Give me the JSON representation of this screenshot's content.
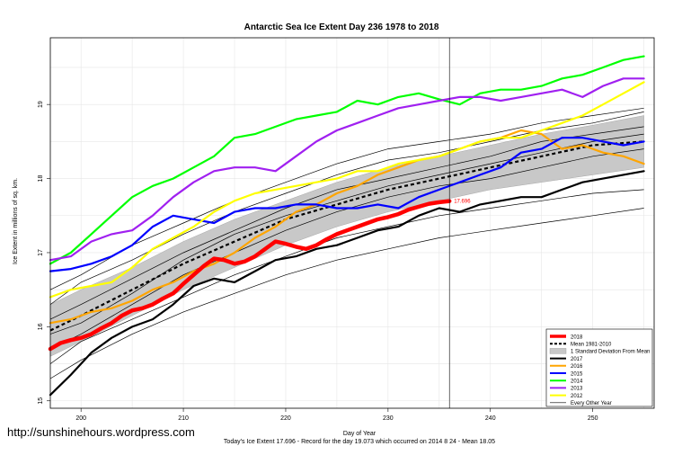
{
  "watermark": "http://sunshinehours.wordpress.com",
  "chart_data": {
    "type": "line",
    "title": "Antarctic Sea Ice Extent Day 236 1978 to 2018",
    "xlabel": "Day of Year",
    "ylabel": "Ice Extent in millions of sq. km.",
    "footer": "Today's Ice Extent  17.696  - Record for the day  19.073 which occurred on 2014 8 24  - Mean  18.05",
    "xlim": [
      197,
      256
    ],
    "ylim": [
      14.9,
      19.9
    ],
    "xticks": [
      200,
      210,
      220,
      230,
      240,
      250
    ],
    "yticks": [
      15,
      16,
      17,
      18,
      19
    ],
    "grid": true,
    "legend_position": "bottom-right",
    "current_day": 236,
    "current_value_label": "17.696",
    "colors": {
      "2018": "#ff0000",
      "mean": "#000000",
      "band": "#c8c8c8",
      "2017": "#000000",
      "2016": "#ffa500",
      "2015": "#0000ff",
      "2014": "#00ff00",
      "2013": "#a020f0",
      "2012": "#ffff00",
      "other": "#000000"
    },
    "legend": [
      "2018",
      "Mean 1981-2010",
      "1 Standard Deviation From Mean",
      "2017",
      "2016",
      "2015",
      "2014",
      "2013",
      "2012",
      "Every Other Year"
    ],
    "band": {
      "x": [
        197,
        200,
        205,
        210,
        215,
        220,
        225,
        230,
        235,
        240,
        245,
        250,
        255
      ],
      "lower": [
        15.6,
        15.8,
        16.15,
        16.5,
        16.8,
        17.1,
        17.35,
        17.55,
        17.7,
        17.85,
        17.95,
        18.05,
        18.15
      ],
      "upper": [
        16.3,
        16.5,
        16.8,
        17.15,
        17.45,
        17.7,
        17.95,
        18.15,
        18.3,
        18.45,
        18.6,
        18.72,
        18.85
      ]
    },
    "mean": {
      "x": [
        197,
        200,
        205,
        210,
        215,
        220,
        225,
        230,
        235,
        240,
        245,
        250,
        255
      ],
      "y": [
        15.95,
        16.15,
        16.5,
        16.85,
        17.15,
        17.45,
        17.65,
        17.85,
        18.0,
        18.15,
        18.3,
        18.45,
        18.5
      ]
    },
    "series": [
      {
        "name": "Every Other Year",
        "role": "other",
        "x": [
          197,
          200,
          205,
          210,
          215,
          220,
          225,
          230,
          235,
          240,
          245,
          250,
          255
        ],
        "y": [
          15.5,
          15.8,
          16.1,
          16.4,
          16.7,
          16.95,
          17.2,
          17.35,
          17.5,
          17.6,
          17.7,
          17.8,
          17.85
        ]
      },
      {
        "name": "Every Other Year",
        "role": "other",
        "x": [
          197,
          200,
          205,
          210,
          215,
          220,
          225,
          230,
          235,
          240,
          245,
          250,
          255
        ],
        "y": [
          15.7,
          15.9,
          16.3,
          16.7,
          17.0,
          17.3,
          17.55,
          17.75,
          17.9,
          18.0,
          18.15,
          18.3,
          18.4
        ]
      },
      {
        "name": "Every Other Year",
        "role": "other",
        "x": [
          197,
          200,
          205,
          210,
          215,
          220,
          225,
          230,
          235,
          240,
          245,
          250,
          255
        ],
        "y": [
          16.1,
          16.3,
          16.65,
          17.0,
          17.3,
          17.6,
          17.85,
          18.0,
          18.15,
          18.3,
          18.5,
          18.6,
          18.7
        ]
      },
      {
        "name": "Every Other Year",
        "role": "other",
        "x": [
          197,
          200,
          205,
          210,
          215,
          220,
          225,
          230,
          235,
          240,
          245,
          250,
          255
        ],
        "y": [
          16.3,
          16.6,
          16.9,
          17.25,
          17.55,
          17.8,
          18.05,
          18.25,
          18.35,
          18.5,
          18.65,
          18.75,
          18.9
        ]
      },
      {
        "name": "Every Other Year",
        "role": "other",
        "x": [
          197,
          200,
          205,
          210,
          215,
          220,
          225,
          230,
          235,
          240,
          245,
          250,
          255
        ],
        "y": [
          15.3,
          15.55,
          15.9,
          16.2,
          16.45,
          16.7,
          16.9,
          17.05,
          17.2,
          17.3,
          17.4,
          17.5,
          17.6
        ]
      },
      {
        "name": "Every Other Year",
        "role": "other",
        "x": [
          197,
          200,
          205,
          210,
          215,
          220,
          225,
          230,
          235,
          240,
          245,
          250,
          255
        ],
        "y": [
          15.9,
          16.05,
          16.45,
          16.9,
          17.25,
          17.5,
          17.7,
          17.9,
          18.05,
          18.2,
          18.35,
          18.5,
          18.6
        ]
      },
      {
        "name": "Every Other Year",
        "role": "other",
        "x": [
          197,
          200,
          205,
          210,
          215,
          220,
          225,
          230,
          235,
          240,
          245,
          250,
          255
        ],
        "y": [
          16.5,
          16.7,
          17.1,
          17.4,
          17.7,
          17.95,
          18.2,
          18.4,
          18.5,
          18.6,
          18.75,
          18.85,
          18.95
        ]
      },
      {
        "name": "2017",
        "role": "2017",
        "x": [
          197,
          199,
          201,
          203,
          205,
          207,
          209,
          211,
          213,
          215,
          217,
          219,
          221,
          223,
          225,
          227,
          229,
          231,
          233,
          235,
          237,
          239,
          241,
          243,
          245,
          247,
          249,
          251,
          253,
          255
        ],
        "y": [
          15.08,
          15.35,
          15.65,
          15.85,
          16.0,
          16.1,
          16.3,
          16.55,
          16.65,
          16.6,
          16.75,
          16.9,
          16.95,
          17.05,
          17.1,
          17.2,
          17.3,
          17.35,
          17.5,
          17.6,
          17.55,
          17.65,
          17.7,
          17.75,
          17.75,
          17.85,
          17.95,
          18.0,
          18.05,
          18.1
        ]
      },
      {
        "name": "2016",
        "role": "2016",
        "x": [
          197,
          199,
          201,
          203,
          205,
          207,
          209,
          211,
          213,
          215,
          217,
          219,
          221,
          223,
          225,
          227,
          229,
          231,
          233,
          235,
          237,
          239,
          241,
          243,
          245,
          247,
          249,
          251,
          253,
          255
        ],
        "y": [
          16.05,
          16.1,
          16.2,
          16.25,
          16.35,
          16.5,
          16.6,
          16.75,
          16.85,
          17.0,
          17.2,
          17.35,
          17.55,
          17.65,
          17.8,
          17.9,
          18.05,
          18.15,
          18.25,
          18.3,
          18.4,
          18.5,
          18.55,
          18.65,
          18.6,
          18.4,
          18.45,
          18.35,
          18.3,
          18.2
        ]
      },
      {
        "name": "2015",
        "role": "2015",
        "x": [
          197,
          199,
          201,
          203,
          205,
          207,
          209,
          211,
          213,
          215,
          217,
          219,
          221,
          223,
          225,
          227,
          229,
          231,
          233,
          235,
          237,
          239,
          241,
          243,
          245,
          247,
          249,
          251,
          253,
          255
        ],
        "y": [
          16.75,
          16.78,
          16.85,
          16.95,
          17.1,
          17.35,
          17.5,
          17.45,
          17.4,
          17.55,
          17.6,
          17.6,
          17.65,
          17.65,
          17.6,
          17.6,
          17.65,
          17.6,
          17.75,
          17.85,
          17.95,
          18.05,
          18.15,
          18.35,
          18.4,
          18.55,
          18.55,
          18.5,
          18.45,
          18.5
        ]
      },
      {
        "name": "2014",
        "role": "2014",
        "x": [
          197,
          199,
          201,
          203,
          205,
          207,
          209,
          211,
          213,
          215,
          217,
          219,
          221,
          223,
          225,
          227,
          229,
          231,
          233,
          235,
          237,
          239,
          241,
          243,
          245,
          247,
          249,
          251,
          253,
          255
        ],
        "y": [
          16.85,
          17.0,
          17.25,
          17.5,
          17.75,
          17.9,
          18.0,
          18.15,
          18.3,
          18.55,
          18.6,
          18.7,
          18.8,
          18.85,
          18.9,
          19.05,
          19.0,
          19.1,
          19.15,
          19.07,
          19.0,
          19.15,
          19.2,
          19.2,
          19.25,
          19.35,
          19.4,
          19.5,
          19.6,
          19.65
        ]
      },
      {
        "name": "2013",
        "role": "2013",
        "x": [
          197,
          199,
          201,
          203,
          205,
          207,
          209,
          211,
          213,
          215,
          217,
          219,
          221,
          223,
          225,
          227,
          229,
          231,
          233,
          235,
          237,
          239,
          241,
          243,
          245,
          247,
          249,
          251,
          253,
          255
        ],
        "y": [
          16.9,
          16.95,
          17.15,
          17.25,
          17.3,
          17.5,
          17.75,
          17.95,
          18.1,
          18.15,
          18.15,
          18.1,
          18.3,
          18.5,
          18.65,
          18.75,
          18.85,
          18.95,
          19.0,
          19.05,
          19.1,
          19.1,
          19.05,
          19.1,
          19.15,
          19.2,
          19.1,
          19.25,
          19.35,
          19.35
        ]
      },
      {
        "name": "2012",
        "role": "2012",
        "x": [
          197,
          199,
          201,
          203,
          205,
          207,
          209,
          211,
          213,
          215,
          217,
          219,
          221,
          223,
          225,
          227,
          229,
          231,
          233,
          235,
          237,
          239,
          241,
          243,
          245,
          247,
          249,
          251,
          253,
          255
        ],
        "y": [
          16.4,
          16.5,
          16.55,
          16.6,
          16.8,
          17.05,
          17.2,
          17.35,
          17.55,
          17.7,
          17.8,
          17.85,
          17.9,
          17.95,
          18.0,
          18.1,
          18.1,
          18.2,
          18.25,
          18.3,
          18.4,
          18.5,
          18.55,
          18.55,
          18.65,
          18.75,
          18.85,
          19.0,
          19.15,
          19.3
        ]
      },
      {
        "name": "2018",
        "role": "2018",
        "x": [
          197,
          198,
          199,
          200,
          201,
          202,
          203,
          204,
          205,
          206,
          207,
          208,
          209,
          210,
          211,
          212,
          213,
          214,
          215,
          216,
          217,
          218,
          219,
          220,
          221,
          222,
          223,
          224,
          225,
          226,
          227,
          228,
          229,
          230,
          231,
          232,
          233,
          234,
          235,
          236
        ],
        "y": [
          15.7,
          15.78,
          15.82,
          15.85,
          15.9,
          15.98,
          16.05,
          16.15,
          16.22,
          16.25,
          16.3,
          16.38,
          16.45,
          16.58,
          16.7,
          16.82,
          16.92,
          16.9,
          16.85,
          16.88,
          16.95,
          17.05,
          17.15,
          17.12,
          17.08,
          17.05,
          17.1,
          17.18,
          17.25,
          17.3,
          17.35,
          17.4,
          17.45,
          17.48,
          17.52,
          17.58,
          17.62,
          17.66,
          17.68,
          17.696
        ]
      }
    ]
  }
}
